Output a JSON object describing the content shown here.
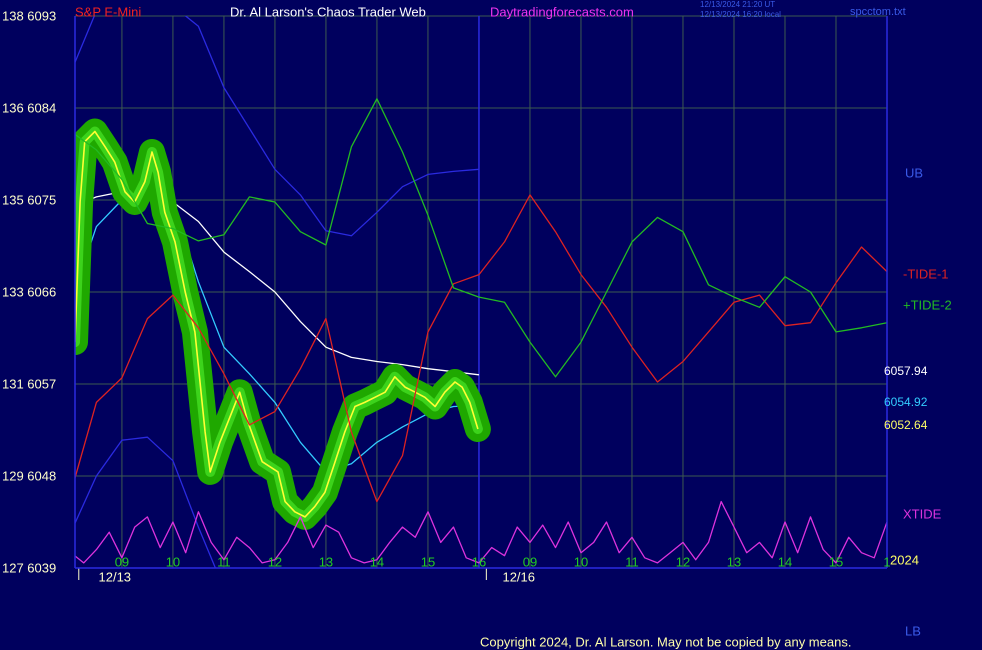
{
  "header": {
    "instrument": "S&P E-Mini",
    "title": "Dr. Al Larson's Chaos Trader Web",
    "site": "Daytradingforecasts.com",
    "timestamps": [
      "12/13/2024 21:20 UT",
      "12/13/2024 16:20 local"
    ],
    "file": "spcctom.txt"
  },
  "footer": {
    "copyright": "Copyright 2024, Dr. Al Larson. May not be copied by any means."
  },
  "chart_data": {
    "type": "line",
    "grid": true,
    "ylim": [
      6039,
      6093
    ],
    "yticks": [
      {
        "value": 6093,
        "label": "138 6093"
      },
      {
        "value": 6084,
        "label": "136 6084"
      },
      {
        "value": 6075,
        "label": "135 6075"
      },
      {
        "value": 6066,
        "label": "133 6066"
      },
      {
        "value": 6057,
        "label": "131 6057"
      },
      {
        "value": 6048,
        "label": "129 6048"
      },
      {
        "value": 6039,
        "label": "127 6039"
      }
    ],
    "xlim": [
      0.08,
      16
    ],
    "xticks": [
      {
        "value": 1,
        "label": "09"
      },
      {
        "value": 2,
        "label": "10"
      },
      {
        "value": 3,
        "label": "11"
      },
      {
        "value": 4,
        "label": "12"
      },
      {
        "value": 5,
        "label": "13"
      },
      {
        "value": 6,
        "label": "14"
      },
      {
        "value": 7,
        "label": "15"
      },
      {
        "value": 8,
        "label": "16"
      },
      {
        "value": 9,
        "label": "09"
      },
      {
        "value": 10,
        "label": "10"
      },
      {
        "value": 11,
        "label": "11"
      },
      {
        "value": 12,
        "label": "12"
      },
      {
        "value": 13,
        "label": "13"
      },
      {
        "value": 14,
        "label": "14"
      },
      {
        "value": 15,
        "label": "15"
      },
      {
        "value": 16,
        "label": "1"
      }
    ],
    "dates": [
      {
        "value": 0.86,
        "label": "12/13"
      },
      {
        "value": 8.78,
        "label": "12/16"
      }
    ],
    "year_label": "2024",
    "x": [
      0,
      0.5,
      1,
      1.5,
      2,
      2.5,
      3,
      3.5,
      4,
      4.5,
      5,
      5.5,
      6,
      6.5,
      7,
      7.5,
      8,
      8.5,
      9,
      9.5,
      10,
      10.5,
      11,
      11.5,
      12,
      12.5,
      13,
      13.5,
      14,
      14.5,
      15,
      15.5,
      16
    ],
    "series": [
      {
        "color": "#ffffff",
        "last_label": "6057.94",
        "values": [
          6074.3,
          6075.3,
          6075.8,
          6075.8,
          6074.8,
          6072.9,
          6069.9,
          6068.0,
          6066.0,
          6063.1,
          6060.6,
          6059.6,
          6059.2,
          6058.9,
          6058.5,
          6058.2,
          6057.9,
          null,
          null,
          null,
          null,
          null,
          null,
          null,
          null,
          null,
          null,
          null,
          null,
          null,
          null,
          null,
          null
        ]
      },
      {
        "color": "#33ccff",
        "last_label": "6054.92",
        "values": [
          6065.0,
          6072.4,
          6075.0,
          6076.0,
          6074.8,
          6067.0,
          6060.6,
          6058.0,
          6055.2,
          6051.3,
          6048.4,
          6049.2,
          6051.3,
          6052.8,
          6054.1,
          6054.8,
          6054.9,
          null,
          null,
          null,
          null,
          null,
          null,
          null,
          null,
          null,
          null,
          null,
          null,
          null,
          null,
          null,
          null
        ]
      },
      {
        "color": "#ffff33",
        "band_color": "#1fa800",
        "last_label": "6052.64",
        "x": [
          0.08,
          0.18,
          0.27,
          0.47,
          0.67,
          0.86,
          1.06,
          1.25,
          1.45,
          1.59,
          1.71,
          1.84,
          2.04,
          2.24,
          2.43,
          2.63,
          2.73,
          2.92,
          3.16,
          3.31,
          3.47,
          3.75,
          4.06,
          4.2,
          4.39,
          4.59,
          4.78,
          4.98,
          5.18,
          5.37,
          5.57,
          5.76,
          5.96,
          6.16,
          6.35,
          6.55,
          6.75,
          6.94,
          7.14,
          7.33,
          7.53,
          7.67,
          7.82,
          7.98
        ],
        "values": [
          6061.1,
          6074.8,
          6080.7,
          6081.7,
          6080.2,
          6078.7,
          6075.8,
          6074.8,
          6076.8,
          6079.7,
          6077.7,
          6073.8,
          6070.9,
          6066.0,
          6062.1,
          6052.3,
          6048.4,
          6051.3,
          6054.3,
          6056.2,
          6053.3,
          6049.4,
          6048.4,
          6045.5,
          6044.5,
          6044.0,
          6045.0,
          6046.4,
          6049.4,
          6052.3,
          6054.8,
          6055.2,
          6055.7,
          6056.2,
          6057.7,
          6056.7,
          6056.2,
          6055.7,
          6054.8,
          6056.2,
          6057.2,
          6056.7,
          6055.2,
          6052.6
        ]
      },
      {
        "name": "UB",
        "color": "#2a2ae0",
        "values": [
          6087.5,
          6093.5,
          6094,
          6094,
          6094,
          6092.0,
          6086.0,
          6082.0,
          6078.0,
          6075.5,
          6072.0,
          6071.5,
          6073.8,
          6076.3,
          6077.5,
          6077.8,
          6078.0,
          null,
          null,
          null,
          null,
          null,
          null,
          null,
          null,
          null,
          null,
          null,
          null,
          null,
          null,
          null,
          null
        ]
      },
      {
        "name": "LB",
        "color": "#2a2ae0",
        "values": [
          6042.5,
          6048.0,
          6051.5,
          6051.8,
          6049.5,
          6043.0,
          6037.0,
          null,
          null,
          null,
          null,
          null,
          null,
          null,
          null,
          null,
          null,
          null,
          null,
          null,
          null,
          null,
          null,
          null,
          null,
          null,
          null,
          null,
          null,
          null,
          null,
          null,
          null
        ]
      },
      {
        "name": "-TIDE-1",
        "color": "#dd2222",
        "values": [
          6046.4,
          6055.2,
          6057.6,
          6063.4,
          6065.7,
          6062.5,
          6058.0,
          6053.0,
          6054.3,
          6058.5,
          6063.4,
          6052.3,
          6045.5,
          6050.0,
          6062.1,
          6066.8,
          6067.7,
          6070.9,
          6075.5,
          6071.9,
          6067.7,
          6064.5,
          6060.6,
          6057.2,
          6059.2,
          6062.1,
          6065.0,
          6065.7,
          6062.7,
          6063.0,
          6066.9,
          6070.4,
          6068.0
        ]
      },
      {
        "name": "+TIDE-2",
        "color": "#22bb22",
        "values": [
          6081.7,
          6079.9,
          6077.0,
          6072.7,
          6072.2,
          6071.0,
          6071.6,
          6075.3,
          6074.8,
          6071.9,
          6070.6,
          6080.2,
          6084.9,
          6079.7,
          6073.5,
          6066.4,
          6065.5,
          6065.0,
          6061.1,
          6057.7,
          6061.1,
          6066.0,
          6070.9,
          6073.3,
          6071.9,
          6066.7,
          6065.5,
          6064.5,
          6067.5,
          6066.0,
          6062.1,
          6062.5,
          6063.0
        ]
      },
      {
        "name": "XTIDE",
        "color": "#dd33dd",
        "x": [
          0,
          0.25,
          0.5,
          0.75,
          1,
          1.25,
          1.5,
          1.75,
          2,
          2.25,
          2.5,
          2.75,
          3,
          3.25,
          3.5,
          3.75,
          4,
          4.25,
          4.5,
          4.75,
          5,
          5.25,
          5.5,
          5.75,
          6,
          6.25,
          6.5,
          6.75,
          7,
          7.25,
          7.5,
          7.75,
          8,
          8.25,
          8.5,
          8.75,
          9,
          9.25,
          9.5,
          9.75,
          10,
          10.25,
          10.5,
          10.75,
          11,
          11.25,
          11.5,
          11.75,
          12,
          12.25,
          12.5,
          12.75,
          13,
          13.25,
          13.5,
          13.75,
          14,
          14.25,
          14.5,
          14.75,
          15,
          15.25,
          15.5,
          15.75,
          16
        ],
        "values": [
          6040.5,
          6039.5,
          6040.8,
          6042.5,
          6040.0,
          6043.0,
          6044.0,
          6041.0,
          6043.5,
          6040.5,
          6044.5,
          6041.5,
          6039.8,
          6042.0,
          6041.0,
          6039.5,
          6039.8,
          6041.5,
          6044.0,
          6041.0,
          6043.2,
          6042.5,
          6040.0,
          6039.5,
          6039.8,
          6041.5,
          6043.0,
          6042.0,
          6044.5,
          6041.5,
          6043.0,
          6040.0,
          6039.5,
          6041.0,
          6040.2,
          6043.0,
          6041.5,
          6043.2,
          6041.0,
          6043.5,
          6040.5,
          6041.5,
          6043.5,
          6040.5,
          6042.0,
          6040.0,
          6039.5,
          6040.5,
          6041.5,
          6039.8,
          6041.5,
          6045.5,
          6043.0,
          6040.5,
          6041.5,
          6040.0,
          6043.5,
          6040.5,
          6044.0,
          6040.8,
          6039.5,
          6042.0,
          6040.5,
          6040.0,
          6043.5
        ]
      }
    ]
  }
}
